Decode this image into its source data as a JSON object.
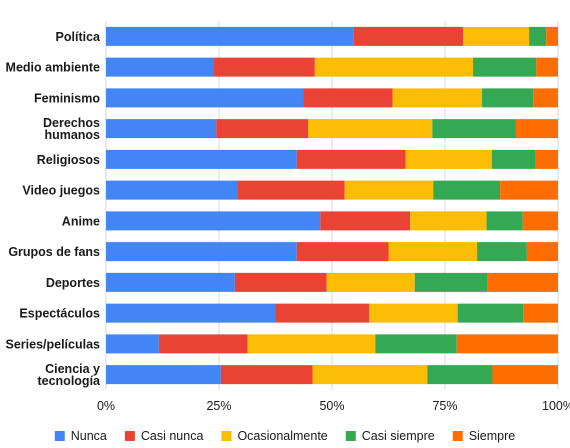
{
  "chart_data": {
    "type": "bar",
    "orientation": "horizontal",
    "stacked": "percent",
    "categories": [
      [
        "Política"
      ],
      [
        "Medio ambiente"
      ],
      [
        "Feminismo"
      ],
      [
        "Derechos",
        "humanos"
      ],
      [
        "Religiosos"
      ],
      [
        "Video juegos"
      ],
      [
        "Anime"
      ],
      [
        "Grupos de fans"
      ],
      [
        "Deportes"
      ],
      [
        "Espectáculos"
      ],
      [
        "Series/películas"
      ],
      [
        "Ciencia y",
        "tecnología"
      ]
    ],
    "series": [
      {
        "name": "Nunca",
        "color": "#4285f4",
        "values": [
          54.7,
          23.9,
          43.6,
          24.4,
          42.2,
          29.1,
          47.4,
          42.2,
          28.5,
          37.5,
          11.7,
          25.4
        ]
      },
      {
        "name": "Casi nunca",
        "color": "#ea4335",
        "values": [
          24.3,
          22.3,
          19.8,
          20.3,
          24.1,
          23.7,
          19.9,
          20.3,
          20.3,
          20.7,
          19.6,
          20.3
        ]
      },
      {
        "name": "Ocasionalmente",
        "color": "#fbbc04",
        "values": [
          14.6,
          35.0,
          19.8,
          27.5,
          19.1,
          19.6,
          16.9,
          19.6,
          19.5,
          19.6,
          28.3,
          25.4
        ]
      },
      {
        "name": "Casi siempre",
        "color": "#34a853",
        "values": [
          3.8,
          14.0,
          11.3,
          18.5,
          9.7,
          14.8,
          8.0,
          11.0,
          16.0,
          14.5,
          18.0,
          14.4
        ]
      },
      {
        "name": "Siempre",
        "color": "#ff6d01",
        "values": [
          2.6,
          4.8,
          5.5,
          9.3,
          4.9,
          12.8,
          7.8,
          6.9,
          15.7,
          7.7,
          22.4,
          14.5
        ]
      }
    ],
    "xaxis": {
      "min": 0,
      "max": 100,
      "ticks": [
        0,
        25,
        50,
        75,
        100
      ],
      "tick_labels": [
        "0%",
        "25%",
        "50%",
        "75%",
        "100%"
      ]
    },
    "grid": true,
    "legend_position": "bottom"
  }
}
